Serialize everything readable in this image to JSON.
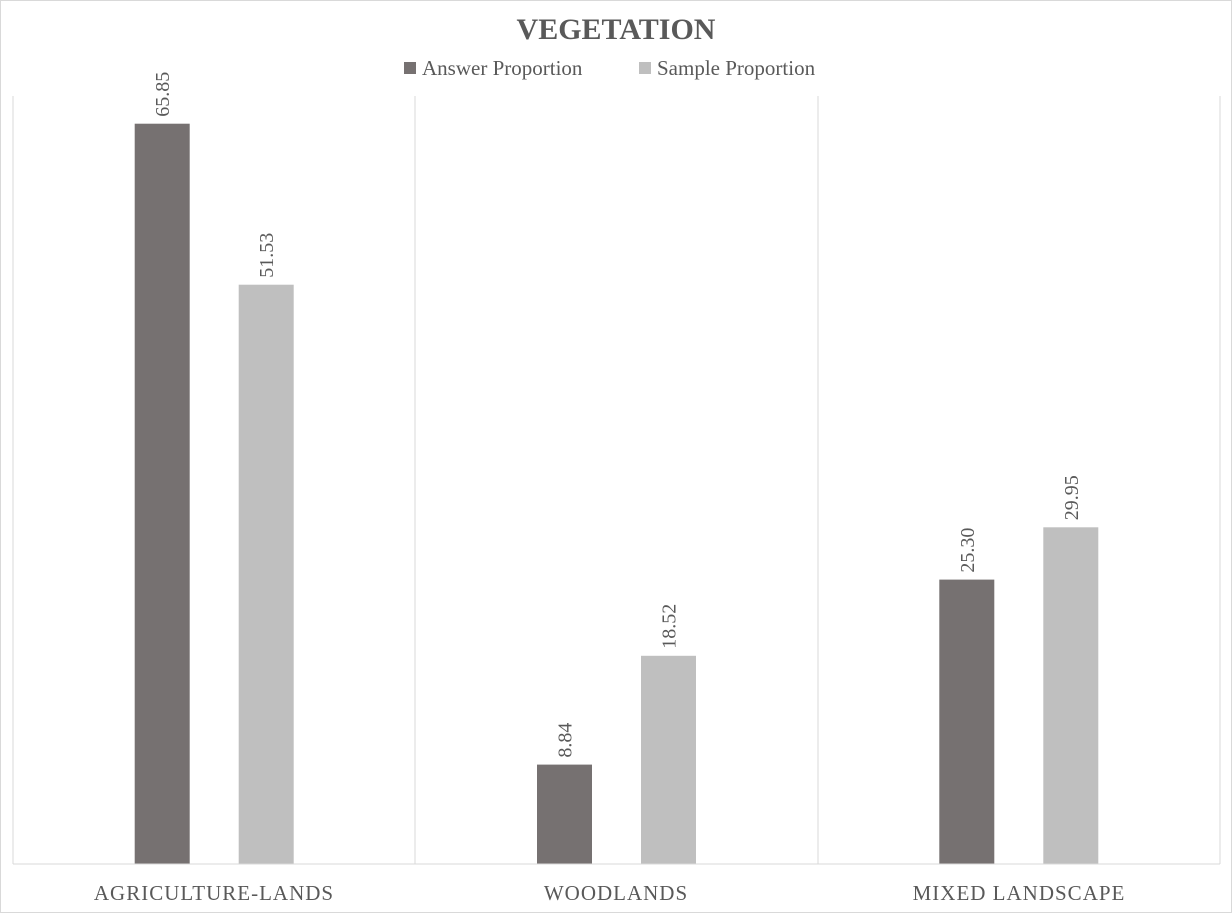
{
  "chart_data": {
    "type": "bar",
    "title": "VEGETATION",
    "categories": [
      "AGRICULTURE-LANDS",
      "WOODLANDS",
      "MIXED LANDSCAPE"
    ],
    "series": [
      {
        "name": "Answer Proportion",
        "color": "#767171",
        "values": [
          65.85,
          8.84,
          25.3
        ],
        "labels": [
          "65.85",
          "8.84",
          "25.30"
        ]
      },
      {
        "name": "Sample Proportion",
        "color": "#bfbfbf",
        "values": [
          51.53,
          18.52,
          29.95
        ],
        "labels": [
          "51.53",
          "18.52",
          "29.95"
        ]
      }
    ],
    "ylim": [
      0,
      70
    ],
    "legend_position": "top",
    "grid": false,
    "category_separators": true,
    "data_labels_rotated": true
  }
}
